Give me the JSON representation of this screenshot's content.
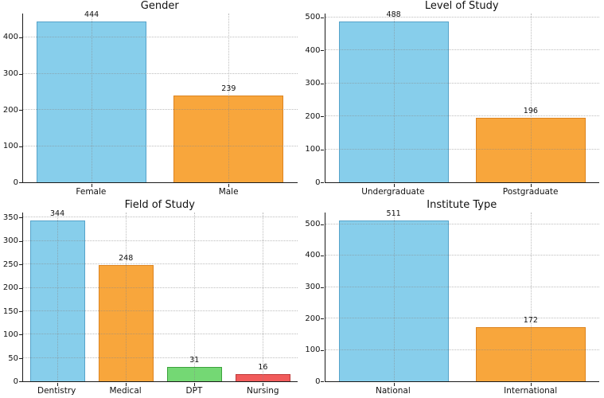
{
  "figure": {
    "background": "#ffffff",
    "grid_style": "dotted",
    "layout": "2x2"
  },
  "palette": {
    "blue_fill": "#87CEEB",
    "blue_edge": "#56A3C9",
    "orange_fill": "#F8A63C",
    "orange_edge": "#DD8420",
    "green_fill": "#74D874",
    "green_edge": "#3CA23C",
    "red_fill": "#F15B5B",
    "red_edge": "#BE3A3A",
    "spine": "#1a1a1a",
    "gridline": "#878787"
  },
  "chart_data": [
    {
      "type": "bar",
      "title": "Gender",
      "categories": [
        "Female",
        "Male"
      ],
      "values": [
        444,
        239
      ],
      "bar_colors": [
        "#87CEEB",
        "#F8A63C"
      ],
      "edge_colors": [
        "#56A3C9",
        "#DD8420"
      ],
      "yticks": [
        0,
        100,
        200,
        300,
        400
      ],
      "ylim": [
        0,
        466
      ],
      "grid": "both-dotted",
      "legend": "none"
    },
    {
      "type": "bar",
      "title": "Level of Study",
      "categories": [
        "Undergraduate",
        "Postgraduate"
      ],
      "values": [
        488,
        196
      ],
      "bar_colors": [
        "#87CEEB",
        "#F8A63C"
      ],
      "edge_colors": [
        "#56A3C9",
        "#DD8420"
      ],
      "yticks": [
        0,
        100,
        200,
        300,
        400,
        500
      ],
      "ylim": [
        0,
        512
      ],
      "grid": "both-dotted",
      "legend": "none"
    },
    {
      "type": "bar",
      "title": "Field of Study",
      "categories": [
        "Dentistry",
        "Medical",
        "DPT",
        "Nursing"
      ],
      "values": [
        344,
        248,
        31,
        16
      ],
      "bar_colors": [
        "#87CEEB",
        "#F8A63C",
        "#74D874",
        "#F15B5B"
      ],
      "edge_colors": [
        "#56A3C9",
        "#DD8420",
        "#3CA23C",
        "#BE3A3A"
      ],
      "yticks": [
        0,
        50,
        100,
        150,
        200,
        250,
        300,
        350
      ],
      "ylim": [
        0,
        361
      ],
      "grid": "both-dotted",
      "legend": "none"
    },
    {
      "type": "bar",
      "title": "Institute Type",
      "categories": [
        "National",
        "International"
      ],
      "values": [
        511,
        172
      ],
      "bar_colors": [
        "#87CEEB",
        "#F8A63C"
      ],
      "edge_colors": [
        "#56A3C9",
        "#DD8420"
      ],
      "yticks": [
        0,
        100,
        200,
        300,
        400,
        500
      ],
      "ylim": [
        0,
        537
      ],
      "grid": "both-dotted",
      "legend": "none"
    }
  ]
}
